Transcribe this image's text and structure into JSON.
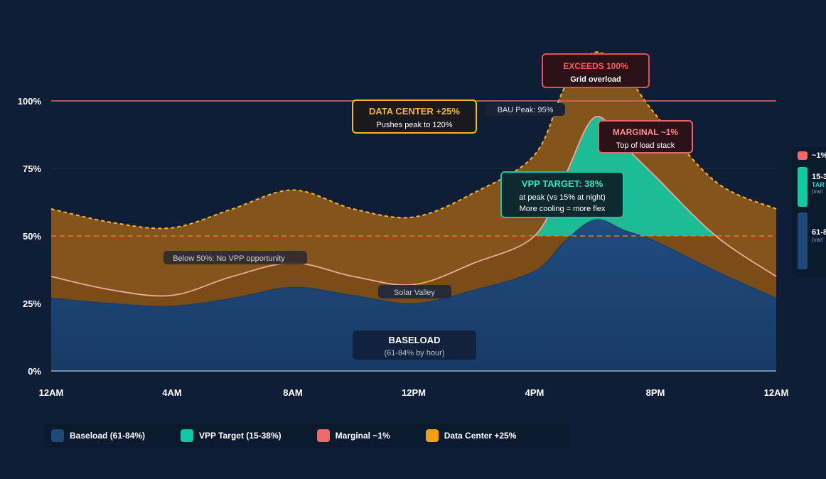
{
  "chart_data": {
    "type": "area",
    "x_ticks": [
      "12AM",
      "4AM",
      "8AM",
      "12PM",
      "4PM",
      "8PM",
      "12AM"
    ],
    "y_ticks": [
      "0%",
      "25%",
      "50%",
      "75%",
      "100%"
    ],
    "ylim": [
      0,
      110
    ],
    "xlim": [
      0,
      24
    ],
    "x_hours": [
      0,
      2,
      4,
      6,
      8,
      10,
      12,
      14,
      16,
      17,
      18,
      19,
      20,
      22,
      24
    ],
    "series": [
      {
        "name": "Baseload (61-84%)",
        "color": "#1e4a7a",
        "values": [
          27,
          25,
          24,
          27,
          31,
          28,
          25,
          30,
          37,
          48,
          56,
          52,
          48,
          37,
          27
        ]
      },
      {
        "name": "VPP Target (15-38%)",
        "color": "#12c9a3",
        "values": [
          35,
          30,
          28,
          35,
          40,
          35,
          32,
          40,
          50,
          72,
          94,
          83,
          72,
          50,
          35
        ]
      },
      {
        "name": "Data Center +25%",
        "color": "#8a5a1c",
        "values": [
          60,
          55,
          53,
          60,
          67,
          60,
          57,
          66,
          80,
          105,
          118,
          110,
          95,
          70,
          60
        ]
      }
    ],
    "reference_lines": [
      {
        "value": 100,
        "color": "#e06a6a"
      },
      {
        "value": 50,
        "color": "#e07b2a"
      }
    ]
  },
  "legend": [
    {
      "label": "Baseload (61-84%)",
      "color": "#1e4a7a"
    },
    {
      "label": "VPP Target (15-38%)",
      "color": "#12c9a3"
    },
    {
      "label": "Marginal ~1%",
      "color": "#f06a6a"
    },
    {
      "label": "Data Center +25%",
      "color": "#f59e0b"
    }
  ],
  "annotations": {
    "exceeds_title": "EXCEEDS 100%",
    "exceeds_sub": "Grid overload",
    "data_center_title": "DATA CENTER +25%",
    "data_center_sub": "Pushes peak to 120%",
    "bau_peak": "BAU Peak: 95%",
    "marginal_title": "MARGINAL ~1%",
    "marginal_sub": "Top of load stack",
    "vpp_title": "VPP TARGET: 38%",
    "vpp_sub1": "at peak (vs 15% at night)",
    "vpp_sub2": "More cooling = more flex",
    "below50": "Below 50%: No VPP opportunity",
    "solar_valley": "Solar Valley",
    "baseload_title": "BASELOAD",
    "baseload_sub": "(61-84% by hour)"
  },
  "side_panel": {
    "marginal": "~1%",
    "vpp": "15-3",
    "vpp_tag": "TAR",
    "vpp_sub": "(vari",
    "base": "61-8",
    "base_sub": "(vari",
    "colors": {
      "marginal": "#f06a6a",
      "vpp": "#12c9a3",
      "base": "#1e4a7a"
    }
  }
}
